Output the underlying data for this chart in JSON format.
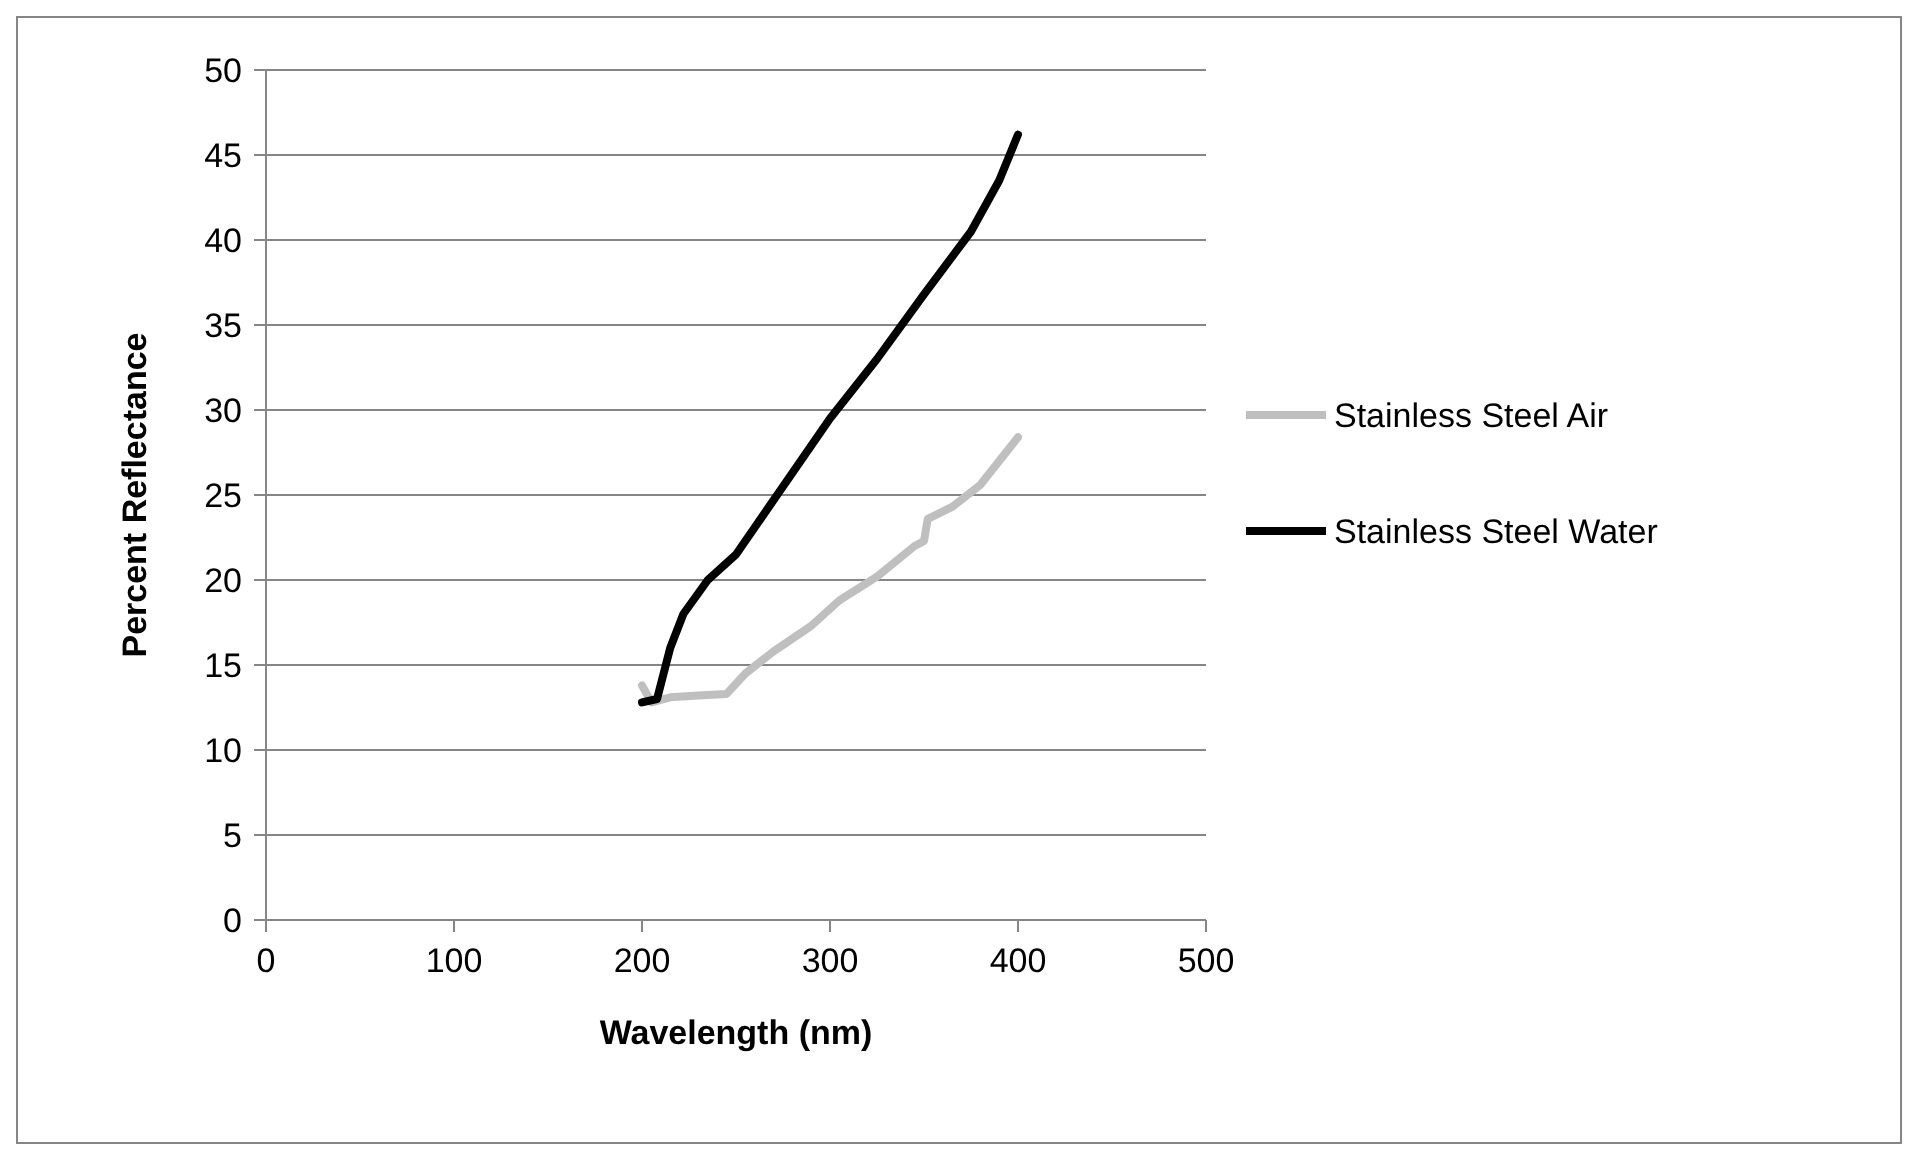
{
  "chart_data": {
    "type": "line",
    "xlabel": "Wavelength (nm)",
    "ylabel": "Percent Reflectance",
    "xlim": [
      0,
      500
    ],
    "xticks": [
      0,
      100,
      200,
      300,
      400,
      500
    ],
    "ylim": [
      0,
      50
    ],
    "yticks": [
      0,
      5,
      10,
      15,
      20,
      25,
      30,
      35,
      40,
      45,
      50
    ],
    "grid": "y",
    "legend": "right",
    "marker": "none",
    "line_style": "solid",
    "series": [
      {
        "name": "Stainless Steel Air",
        "color": "#bfbfbf",
        "x": [
          200,
          205,
          215,
          230,
          245,
          255,
          270,
          290,
          305,
          325,
          345,
          350,
          352,
          365,
          380,
          400
        ],
        "values": [
          13.8,
          12.8,
          13.1,
          13.2,
          13.3,
          14.5,
          15.8,
          17.3,
          18.8,
          20.2,
          22,
          22.3,
          23.6,
          24.3,
          25.6,
          28.4
        ]
      },
      {
        "name": "Stainless Steel Water",
        "color": "#000000",
        "x": [
          200,
          208,
          215,
          222,
          235,
          250,
          275,
          300,
          325,
          350,
          375,
          390,
          400
        ],
        "values": [
          12.8,
          13,
          16,
          18,
          20,
          21.5,
          25.5,
          29.5,
          33,
          36.8,
          40.5,
          43.5,
          46.2
        ]
      }
    ]
  }
}
